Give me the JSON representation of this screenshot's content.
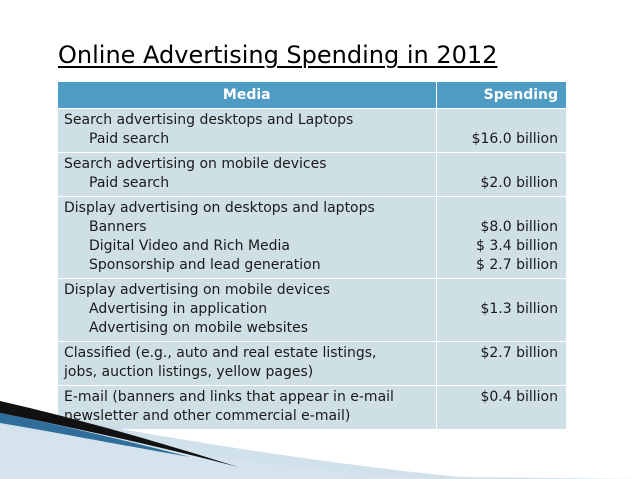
{
  "title": "Online Advertising Spending in 2012",
  "table": {
    "headers": {
      "media": "Media",
      "spending": "Spending"
    },
    "rows": [
      {
        "media": [
          "Search advertising desktops and Laptops",
          "Paid search"
        ],
        "spending": [
          "$16.0 billion"
        ]
      },
      {
        "media": [
          "Search advertising on mobile devices",
          "Paid search"
        ],
        "spending": [
          "$2.0 billion"
        ]
      },
      {
        "media": [
          "Display advertising on desktops and laptops",
          "Banners",
          "Digital Video and Rich Media",
          "Sponsorship and lead generation"
        ],
        "spending": [
          "$8.0 billion",
          "$ 3.4 billion",
          "$ 2.7 billion"
        ]
      },
      {
        "media": [
          "Display advertising on mobile devices",
          "Advertising in application",
          "Advertising on mobile websites"
        ],
        "spending": [
          "$1.3 billion"
        ]
      },
      {
        "media": [
          "Classified (e.g., auto and real estate listings,",
          "jobs, auction listings, yellow pages)"
        ],
        "spending": [
          "$2.7 billion"
        ]
      },
      {
        "media": [
          "E-mail (banners and links that appear in e-mail",
          "newsletter and other commercial e-mail)"
        ],
        "spending": [
          "$0.4 billion"
        ]
      }
    ]
  },
  "colors": {
    "header_bg": "#4e9bc4",
    "row_bg": "#cfdfe6",
    "swoosh_dark": "#111111",
    "swoosh_light": "#aac8dc"
  }
}
